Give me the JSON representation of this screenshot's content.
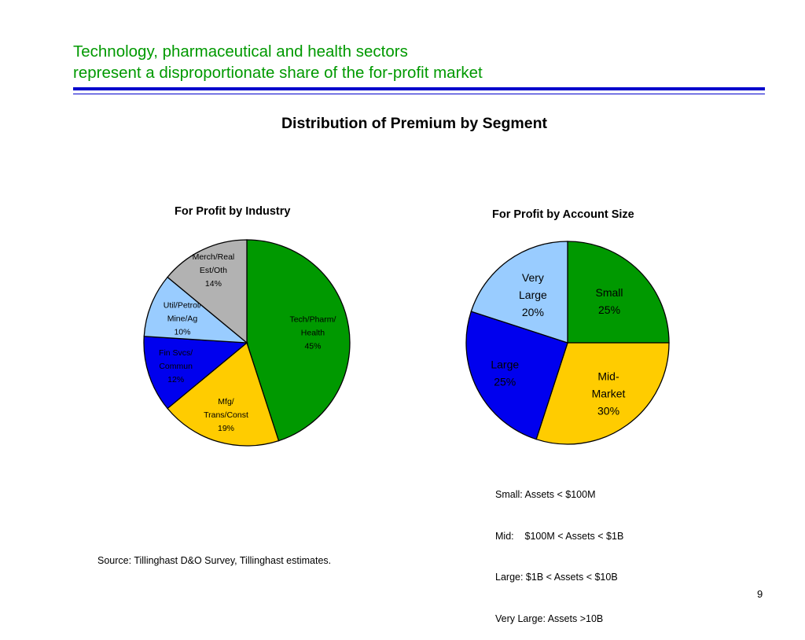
{
  "slide": {
    "title_lines": [
      "Technology, pharmaceutical and health sectors",
      "represent a disproportionate share of the for-profit market"
    ],
    "subtitle": "Distribution of Premium by Segment",
    "rule_color": "#0000cc",
    "title_color": "#009900",
    "legend_lines": [
      "Small: Assets < $100M",
      "Mid:    $100M < Assets < $1B",
      "Large: $1B < Assets < $10B",
      "Very Large: Assets >10B"
    ],
    "source": "Source: Tillinghast D&O Survey, Tillinghast estimates.",
    "page_number": "9"
  },
  "chart_data": [
    {
      "type": "pie",
      "title": "For Profit by Industry",
      "slices": [
        {
          "label_lines": [
            "Tech/Pharm/",
            "Health"
          ],
          "value": 45,
          "value_label": "45%",
          "color": "#009900"
        },
        {
          "label_lines": [
            "Mfg/",
            "Trans/Const"
          ],
          "value": 19,
          "value_label": "19%",
          "color": "#ffcc00"
        },
        {
          "label_lines": [
            "Fin Svcs/",
            "Commun"
          ],
          "value": 12,
          "value_label": "12%",
          "color": "#0000ee"
        },
        {
          "label_lines": [
            "Util/Petrol/",
            "Mine/Ag"
          ],
          "value": 10,
          "value_label": "10%",
          "color": "#99ccff"
        },
        {
          "label_lines": [
            "Merch/Real",
            "Est/Oth"
          ],
          "value": 14,
          "value_label": "14%",
          "color": "#b2b2b2"
        }
      ]
    },
    {
      "type": "pie",
      "title": "For Profit by Account Size",
      "slices": [
        {
          "label_lines": [
            "Small"
          ],
          "value": 25,
          "value_label": "25%",
          "color": "#009900"
        },
        {
          "label_lines": [
            "Mid-",
            "Market"
          ],
          "value": 30,
          "value_label": "30%",
          "color": "#ffcc00"
        },
        {
          "label_lines": [
            "Large"
          ],
          "value": 25,
          "value_label": "25%",
          "color": "#0000ee"
        },
        {
          "label_lines": [
            "Very",
            "Large"
          ],
          "value": 20,
          "value_label": "20%",
          "color": "#99ccff"
        }
      ]
    }
  ]
}
